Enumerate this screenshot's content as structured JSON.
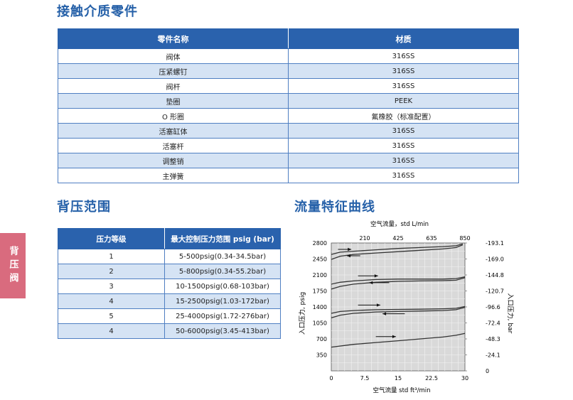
{
  "parts": {
    "title": "接触介质零件",
    "headers": [
      "零件名称",
      "材质"
    ],
    "rows": [
      [
        "阀体",
        "316SS"
      ],
      [
        "压紧螺钉",
        "316SS"
      ],
      [
        "阀杆",
        "316SS"
      ],
      [
        "垫圈",
        "PEEK"
      ],
      [
        "O 形圈",
        "氟橡胶（标准配置）"
      ],
      [
        "活塞缸体",
        "316SS"
      ],
      [
        "活塞杆",
        "316SS"
      ],
      [
        "调整销",
        "316SS"
      ],
      [
        "主弹簧",
        "316SS"
      ]
    ]
  },
  "back_pressure": {
    "title": "背压范围",
    "headers": [
      "压力等级",
      "最大控制压力范围 psig (bar)"
    ],
    "rows": [
      [
        "1",
        "5-500psig(0.34-34.5bar)"
      ],
      [
        "2",
        "5-800psig(0.34-55.2bar)"
      ],
      [
        "3",
        "10-1500psig(0.68-103bar)"
      ],
      [
        "4",
        "15-2500psig(1.03-172bar)"
      ],
      [
        "5",
        "25-4000psig(1.72-276bar)"
      ],
      [
        "4",
        "50-6000psig(3.45-413bar)"
      ]
    ]
  },
  "side_tab": {
    "label": "背压阀"
  },
  "flow_curve": {
    "title": "流量特征曲线"
  },
  "colors": {
    "brand_blue": "#2a62ad",
    "row_tint": "#d5e3f4",
    "side_tab": "#d96b7e",
    "plot_bg": "#d9d9d9"
  },
  "chart_data": {
    "type": "line",
    "top_axis_label": "空气流量，std L/min",
    "top_ticks": [
      "210",
      "425",
      "635",
      "850"
    ],
    "xlabel": "空气流量 std ft³/min",
    "x_ticks": [
      "0",
      "7.5",
      "15",
      "22.5",
      "30"
    ],
    "xlim": [
      0,
      30
    ],
    "ylabel_left": "入口压力, psig",
    "y_ticks_left": [
      "350",
      "700",
      "1050",
      "1400",
      "1750",
      "2100",
      "2450",
      "2800"
    ],
    "ylim": [
      0,
      2800
    ],
    "ylabel_right": "入口压力, bar",
    "y_ticks_right": [
      "0",
      "24.1",
      "48.3",
      "72.4",
      "96.6",
      "120.7",
      "144.8",
      "169.0",
      "193.1"
    ],
    "grid": true,
    "curves": [
      {
        "up": {
          "x": [
            0,
            2,
            5,
            10,
            15,
            20,
            25,
            28,
            29.5
          ],
          "y": [
            2550,
            2600,
            2620,
            2650,
            2680,
            2700,
            2720,
            2740,
            2780
          ]
        },
        "down": {
          "x": [
            0,
            2,
            5,
            10,
            15,
            20,
            25,
            28,
            29.5
          ],
          "y": [
            2440,
            2510,
            2550,
            2580,
            2610,
            2640,
            2670,
            2700,
            2760
          ]
        }
      },
      {
        "up": {
          "x": [
            0,
            2,
            5,
            10,
            15,
            20,
            25,
            28,
            30
          ],
          "y": [
            1900,
            1940,
            1970,
            2000,
            2010,
            2010,
            2010,
            2020,
            2060
          ]
        },
        "down": {
          "x": [
            0,
            2,
            5,
            10,
            15,
            20,
            25,
            28,
            30
          ],
          "y": [
            1790,
            1850,
            1900,
            1940,
            1960,
            1970,
            1975,
            1985,
            2040
          ]
        }
      },
      {
        "up": {
          "x": [
            0,
            2,
            5,
            10,
            15,
            20,
            25,
            28,
            30
          ],
          "y": [
            1260,
            1300,
            1320,
            1340,
            1345,
            1350,
            1360,
            1370,
            1410
          ]
        },
        "down": {
          "x": [
            0,
            2,
            5,
            10,
            15,
            20,
            25,
            28,
            30
          ],
          "y": [
            1160,
            1220,
            1260,
            1290,
            1300,
            1310,
            1320,
            1340,
            1390
          ]
        }
      },
      {
        "line": {
          "x": [
            0,
            5,
            10,
            15,
            20,
            25,
            28,
            30
          ],
          "y": [
            520,
            580,
            620,
            660,
            700,
            740,
            780,
            820
          ]
        }
      }
    ],
    "arrows": [
      {
        "x": [
          1.5,
          4.5
        ],
        "y": [
          2660,
          2660
        ],
        "dir": "right"
      },
      {
        "x": [
          6.5,
          3.5
        ],
        "y": [
          2520,
          2520
        ],
        "dir": "left"
      },
      {
        "x": [
          6,
          10.5
        ],
        "y": [
          2080,
          2080
        ],
        "dir": "right"
      },
      {
        "x": [
          13,
          8.5
        ],
        "y": [
          1930,
          1930
        ],
        "dir": "left"
      },
      {
        "x": [
          6,
          11
        ],
        "y": [
          1440,
          1440
        ],
        "dir": "right"
      },
      {
        "x": [
          16.5,
          11.5
        ],
        "y": [
          1250,
          1250
        ],
        "dir": "left"
      },
      {
        "x": [
          10,
          14.5
        ],
        "y": [
          750,
          750
        ],
        "dir": "right"
      }
    ]
  }
}
